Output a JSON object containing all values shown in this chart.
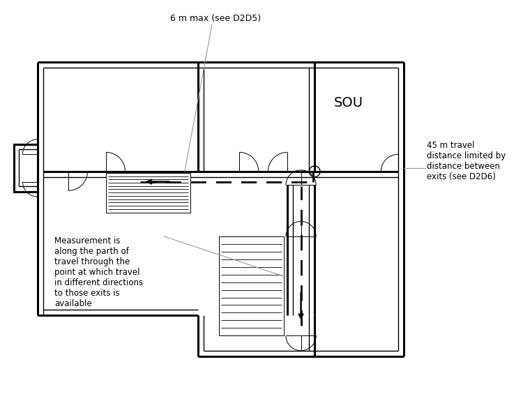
{
  "bg_color": "#ffffff",
  "line_color": "#000000",
  "title_text": "6 m max (see D2D5)",
  "sou_text": "SOU",
  "label1_text": "45 m travel\ndistance limited by\ndistance between\nexits (see D2D6)",
  "label2_text": "Measurement is\nalong the parth of\ntravel through the\npoint at which travel\nin different directions\nto those exits is\navailable",
  "lw_outer": 2.2,
  "lw_inner": 1.0,
  "lw_thin": 0.7,
  "lw_dash": 2.0
}
